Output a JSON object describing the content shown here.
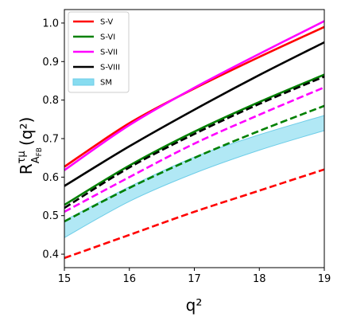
{
  "chart_data": {
    "type": "line",
    "title": "",
    "xlabel": "q²",
    "ylabel_main": "R",
    "ylabel_sup": "τμ",
    "ylabel_sub": "A",
    "ylabel_subsub": "FB",
    "ylabel_arg": "(q²)",
    "xlim": [
      15,
      19
    ],
    "ylim": [
      0.365,
      1.035
    ],
    "xticks": [
      15,
      16,
      17,
      18,
      19
    ],
    "xtick_labels": [
      "15",
      "16",
      "17",
      "18",
      "19"
    ],
    "yticks": [
      0.4,
      0.5,
      0.6,
      0.7,
      0.8,
      0.9,
      1.0
    ],
    "ytick_labels": [
      "0.4",
      "0.5",
      "0.6",
      "0.7",
      "0.8",
      "0.9",
      "1.0"
    ],
    "grid": false,
    "legend_position": "top-left",
    "x": [
      15,
      16,
      17,
      18,
      19
    ],
    "series": [
      {
        "name": "S-V",
        "color": "#ff0000",
        "style": "solid",
        "values": [
          0.627,
          0.74,
          0.83,
          0.912,
          0.99
        ]
      },
      {
        "name": "S-VI",
        "color": "#008000",
        "style": "solid",
        "values": [
          0.528,
          0.63,
          0.718,
          0.795,
          0.866
        ]
      },
      {
        "name": "S-VII",
        "color": "#ff00ff",
        "style": "solid",
        "values": [
          0.618,
          0.735,
          0.832,
          0.92,
          1.005
        ]
      },
      {
        "name": "S-VIII",
        "color": "#000000",
        "style": "solid",
        "values": [
          0.577,
          0.68,
          0.775,
          0.865,
          0.95
        ]
      },
      {
        "name": "",
        "color": "#000000",
        "style": "dashed",
        "values": [
          0.52,
          0.625,
          0.712,
          0.79,
          0.861
        ]
      },
      {
        "name": "",
        "color": "#ff00ff",
        "style": "dashed",
        "values": [
          0.51,
          0.6,
          0.687,
          0.762,
          0.833
        ]
      },
      {
        "name": "",
        "color": "#008000",
        "style": "dashed",
        "values": [
          0.485,
          0.572,
          0.65,
          0.72,
          0.785
        ]
      },
      {
        "name": "",
        "color": "#ff0000",
        "style": "dashed",
        "values": [
          0.39,
          0.45,
          0.51,
          0.565,
          0.62
        ]
      }
    ],
    "band": {
      "name": "SM",
      "color": "#87dcf0",
      "edge_color": "#6ecde8",
      "lower": [
        0.443,
        0.537,
        0.61,
        0.67,
        0.721
      ],
      "upper": [
        0.487,
        0.575,
        0.652,
        0.71,
        0.76
      ]
    },
    "legend": [
      {
        "label": "S-V",
        "color": "#ff0000",
        "kind": "line"
      },
      {
        "label": "S-VI",
        "color": "#008000",
        "kind": "line"
      },
      {
        "label": "S-VII",
        "color": "#ff00ff",
        "kind": "line"
      },
      {
        "label": "S-VIII",
        "color": "#000000",
        "kind": "line"
      },
      {
        "label": "SM",
        "color": "#87dcf0",
        "kind": "patch"
      }
    ]
  }
}
